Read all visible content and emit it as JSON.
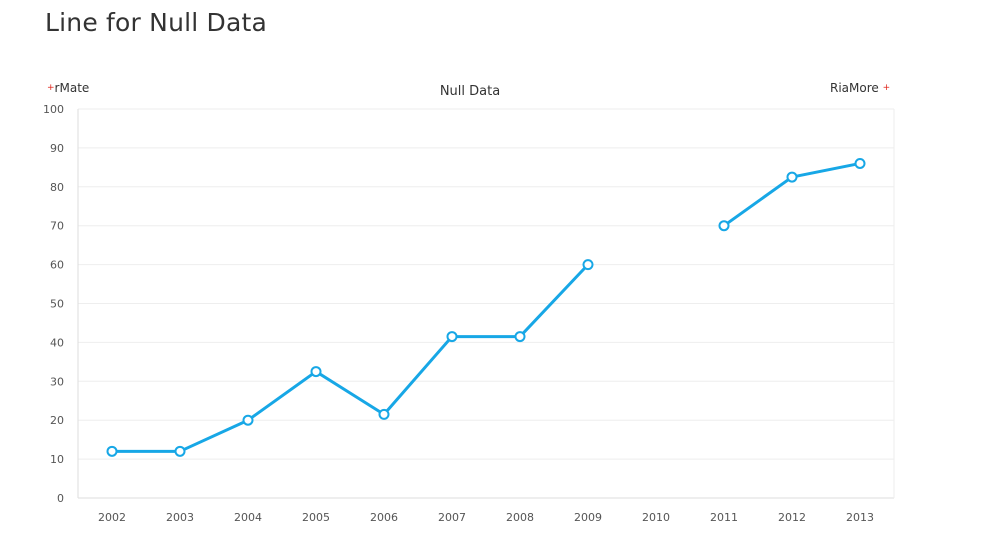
{
  "page": {
    "title": "Line for Null Data"
  },
  "branding": {
    "left_label": "rMate",
    "right_label": "RiaMore",
    "mark_glyph": "+"
  },
  "colors": {
    "series": "#17a7e6",
    "grid": "#eeeeee",
    "axis": "#dddddd",
    "brand_mark": "#e0261c"
  },
  "chart_data": {
    "type": "line",
    "title": "Null Data",
    "xlabel": "",
    "ylabel": "",
    "categories": [
      "2002",
      "2003",
      "2004",
      "2005",
      "2006",
      "2007",
      "2008",
      "2009",
      "2010",
      "2011",
      "2012",
      "2013"
    ],
    "series": [
      {
        "values": [
          12,
          12,
          20,
          32.5,
          21.5,
          41.5,
          41.5,
          60,
          null,
          70,
          82.5,
          86
        ]
      }
    ],
    "ylim": [
      0,
      100
    ],
    "yticks": [
      0,
      10,
      20,
      30,
      40,
      50,
      60,
      70,
      80,
      90,
      100
    ],
    "grid": true,
    "legend": "none",
    "null_handling": "gap"
  }
}
